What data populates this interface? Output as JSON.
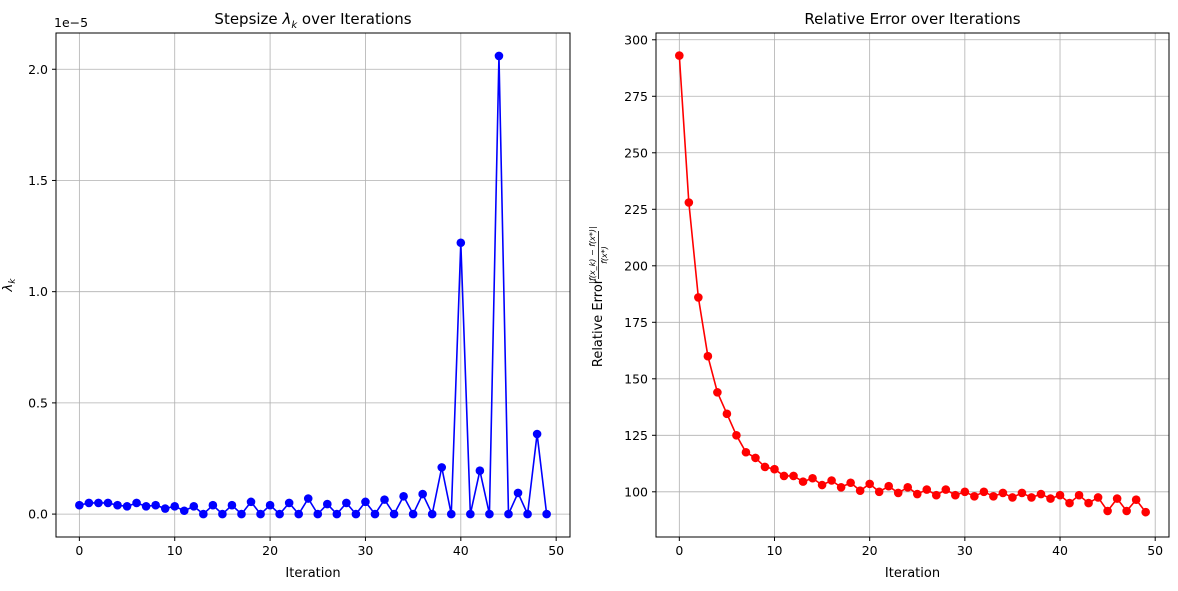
{
  "chart_data": [
    {
      "type": "line",
      "title": "Stepsize λ_k over Iterations",
      "title_prefix": "Stepsize ",
      "title_symbol": "λ",
      "title_symbol_sub": "k",
      "title_suffix": " over Iterations",
      "xlabel": "Iteration",
      "ylabel_symbol": "λ",
      "ylabel_sub": "k",
      "offset_label": "1e−5",
      "xlim": [
        -2.45,
        51.45
      ],
      "ylim": [
        -0.103,
        2.163
      ],
      "xticks": [
        0,
        10,
        20,
        30,
        40,
        50
      ],
      "yticks": [
        0.0,
        0.5,
        1.0,
        1.5,
        2.0
      ],
      "ytick_labels": [
        "0.0",
        "0.5",
        "1.0",
        "1.5",
        "2.0"
      ],
      "grid": true,
      "marker": "circle",
      "color": "#0000ff",
      "series": [
        {
          "x": [
            0,
            1,
            2,
            3,
            4,
            5,
            6,
            7,
            8,
            9,
            10,
            11,
            12,
            13,
            14,
            15,
            16,
            17,
            18,
            19,
            20,
            21,
            22,
            23,
            24,
            25,
            26,
            27,
            28,
            29,
            30,
            31,
            32,
            33,
            34,
            35,
            36,
            37,
            38,
            39,
            40,
            41,
            42,
            43,
            44,
            45,
            46,
            47,
            48,
            49
          ],
          "values": [
            0.04,
            0.05,
            0.05,
            0.05,
            0.04,
            0.035,
            0.05,
            0.035,
            0.04,
            0.025,
            0.035,
            0.015,
            0.035,
            0.0,
            0.04,
            0.0,
            0.04,
            0.0,
            0.055,
            0.0,
            0.04,
            0.0,
            0.05,
            0.0,
            0.07,
            0.0,
            0.045,
            0.0,
            0.05,
            0.0,
            0.055,
            0.0,
            0.065,
            0.0,
            0.08,
            0.0,
            0.09,
            0.0,
            0.21,
            0.0,
            1.22,
            0.0,
            0.195,
            0.0,
            2.06,
            0.0,
            0.095,
            0.0,
            0.36,
            0.0
          ]
        }
      ]
    },
    {
      "type": "line",
      "title": "Relative Error over Iterations",
      "xlabel": "Iteration",
      "ylabel_text": "Relative Error",
      "ylabel_numerator": "|f(x_k) − f(x*)|",
      "ylabel_denominator": "f(x*)",
      "xlim": [
        -2.45,
        51.45
      ],
      "ylim": [
        80.0,
        303.0
      ],
      "xticks": [
        0,
        10,
        20,
        30,
        40,
        50
      ],
      "yticks": [
        100,
        125,
        150,
        175,
        200,
        225,
        250,
        275,
        300
      ],
      "grid": true,
      "marker": "circle",
      "color": "#ff0000",
      "series": [
        {
          "x": [
            0,
            1,
            2,
            3,
            4,
            5,
            6,
            7,
            8,
            9,
            10,
            11,
            12,
            13,
            14,
            15,
            16,
            17,
            18,
            19,
            20,
            21,
            22,
            23,
            24,
            25,
            26,
            27,
            28,
            29,
            30,
            31,
            32,
            33,
            34,
            35,
            36,
            37,
            38,
            39,
            40,
            41,
            42,
            43,
            44,
            45,
            46,
            47,
            48,
            49
          ],
          "values": [
            293,
            228,
            186,
            160,
            144,
            134.5,
            125,
            117.5,
            115,
            111,
            110,
            107,
            107,
            104.5,
            106,
            103,
            105,
            102,
            104,
            100.5,
            103.5,
            100,
            102.5,
            99.5,
            102,
            99,
            101,
            98.5,
            101,
            98.5,
            100,
            98,
            100,
            98,
            99.5,
            97.5,
            99.5,
            97.5,
            99,
            97,
            98.5,
            95,
            98.5,
            95,
            97.5,
            91.5,
            97,
            91.5,
            96.5,
            91
          ]
        }
      ]
    }
  ]
}
